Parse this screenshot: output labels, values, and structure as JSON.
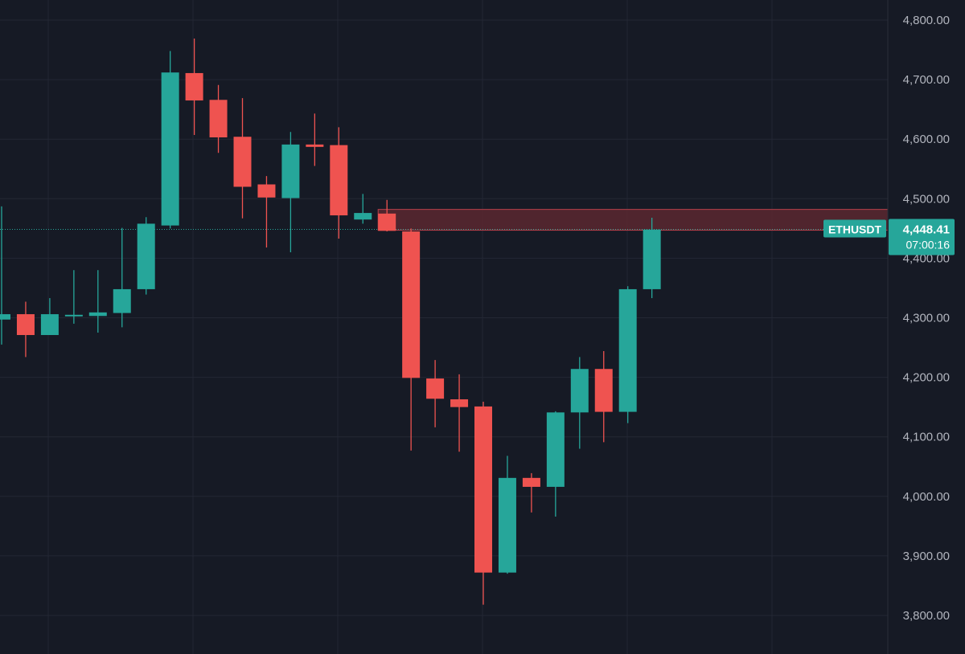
{
  "symbol": "ETHUSDT",
  "last_price_label": "4,448.41",
  "countdown": "07:00:16",
  "colors": {
    "background": "#161a25",
    "grid": "#232734",
    "up": "#26a69a",
    "down": "#ef5350",
    "zone_fill": "#5b2830",
    "zone_stroke": "#b8404a",
    "price_line": "#26a69a",
    "axis_text": "#b2b5be"
  },
  "chart_data": {
    "type": "candlestick",
    "y_axis": {
      "position": "right",
      "range": [
        3770,
        4830
      ],
      "ticks": [
        3800,
        3900,
        4000,
        4100,
        4200,
        4300,
        4400,
        4500,
        4600,
        4700,
        4800
      ],
      "tick_labels": [
        "3,800.00",
        "3,900.00",
        "4,000.00",
        "4,100.00",
        "4,200.00",
        "4,300.00",
        "4,400.00",
        "4,500.00",
        "4,600.00",
        "4,700.00",
        "4,800.00"
      ]
    },
    "grid": true,
    "candles": [
      {
        "o": 4297,
        "h": 4487,
        "l": 4255,
        "c": 4306
      },
      {
        "o": 4306,
        "h": 4327,
        "l": 4234,
        "c": 4271
      },
      {
        "o": 4271,
        "h": 4333,
        "l": 4271,
        "c": 4306
      },
      {
        "o": 4304,
        "h": 4380,
        "l": 4290,
        "c": 4305
      },
      {
        "o": 4303,
        "h": 4380,
        "l": 4275,
        "c": 4309
      },
      {
        "o": 4308,
        "h": 4451,
        "l": 4284,
        "c": 4348
      },
      {
        "o": 4348,
        "h": 4469,
        "l": 4339,
        "c": 4458
      },
      {
        "o": 4455,
        "h": 4748,
        "l": 4450,
        "c": 4712
      },
      {
        "o": 4711,
        "h": 4769,
        "l": 4607,
        "c": 4665
      },
      {
        "o": 4666,
        "h": 4691,
        "l": 4577,
        "c": 4603
      },
      {
        "o": 4604,
        "h": 4669,
        "l": 4467,
        "c": 4520
      },
      {
        "o": 4524,
        "h": 4538,
        "l": 4418,
        "c": 4502
      },
      {
        "o": 4501,
        "h": 4612,
        "l": 4410,
        "c": 4591
      },
      {
        "o": 4591,
        "h": 4643,
        "l": 4555,
        "c": 4587
      },
      {
        "o": 4590,
        "h": 4620,
        "l": 4433,
        "c": 4472
      },
      {
        "o": 4465,
        "h": 4508,
        "l": 4458,
        "c": 4476
      },
      {
        "o": 4475,
        "h": 4498,
        "l": 4445,
        "c": 4446
      },
      {
        "o": 4445,
        "h": 4450,
        "l": 4077,
        "c": 4199
      },
      {
        "o": 4198,
        "h": 4229,
        "l": 4116,
        "c": 4164
      },
      {
        "o": 4163,
        "h": 4205,
        "l": 4075,
        "c": 4150
      },
      {
        "o": 4151,
        "h": 4159,
        "l": 3818,
        "c": 3872
      },
      {
        "o": 3872,
        "h": 4068,
        "l": 3870,
        "c": 4031
      },
      {
        "o": 4031,
        "h": 4039,
        "l": 3973,
        "c": 4016
      },
      {
        "o": 4016,
        "h": 4143,
        "l": 3966,
        "c": 4141
      },
      {
        "o": 4141,
        "h": 4234,
        "l": 4080,
        "c": 4214
      },
      {
        "o": 4214,
        "h": 4244,
        "l": 4091,
        "c": 4142
      },
      {
        "o": 4142,
        "h": 4353,
        "l": 4123,
        "c": 4348
      },
      {
        "o": 4348,
        "h": 4468,
        "l": 4333,
        "c": 4448
      }
    ],
    "zone": {
      "from": 4447,
      "to": 4482
    },
    "last_price": 4448.41
  }
}
